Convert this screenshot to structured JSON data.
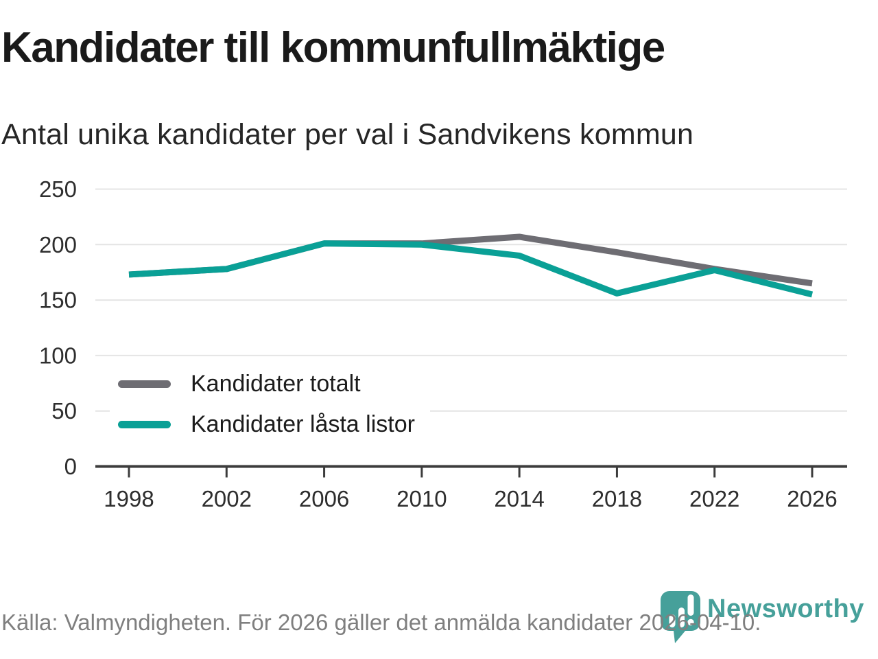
{
  "title": "Kandidater till kommunfullmäktige",
  "subtitle": "Antal unika kandidater per val i Sandvikens kommun",
  "source_note": "Källa: Valmyndigheten. För 2026 gäller det anmälda kandidater 2026-04-10.",
  "brand": {
    "name": "Newsworthy",
    "color": "#46a09a"
  },
  "colors": {
    "grid": "#e4e4e4",
    "axis": "#3c3c3c",
    "tick_label": "#2e2e2e",
    "title_text": "#1a1a1a",
    "subtitle_text": "#262626",
    "source_text": "#7f7f7f"
  },
  "chart_data": {
    "type": "line",
    "x": [
      1998,
      2002,
      2006,
      2010,
      2014,
      2018,
      2022,
      2026
    ],
    "series": [
      {
        "name": "Kandidater totalt",
        "color": "#6e6d73",
        "values": [
          173,
          178,
          201,
          201,
          207,
          193,
          178,
          165
        ]
      },
      {
        "name": "Kandidater låsta listor",
        "color": "#0aa096",
        "values": [
          173,
          178,
          201,
          200,
          190,
          156,
          177,
          155
        ]
      }
    ],
    "xlabel": "",
    "ylabel": "",
    "ylim": [
      0,
      250
    ],
    "yticks": [
      0,
      50,
      100,
      150,
      200,
      250
    ],
    "grid": "horizontal",
    "legend_position": "inside-bottom-left"
  }
}
